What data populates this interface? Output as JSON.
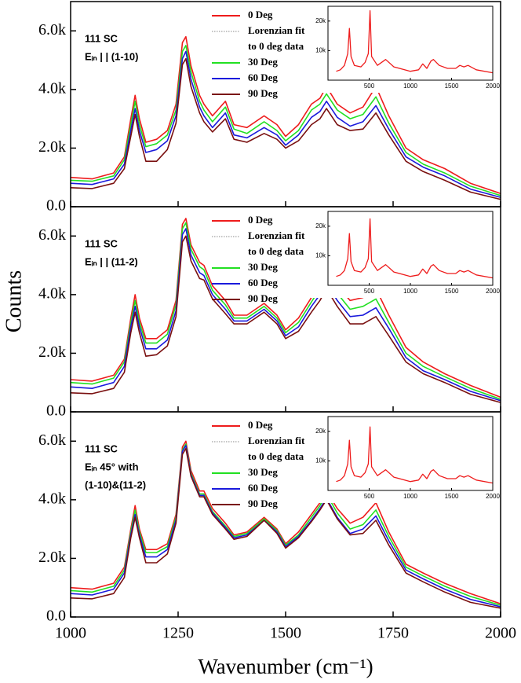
{
  "chart_data": [
    {
      "type": "line",
      "annotations": [
        "111 SC",
        "Eᵢₙ | | (1-10)"
      ],
      "x": [
        1000,
        1050,
        1100,
        1125,
        1140,
        1150,
        1160,
        1175,
        1200,
        1225,
        1245,
        1260,
        1268,
        1280,
        1300,
        1310,
        1330,
        1360,
        1380,
        1410,
        1450,
        1480,
        1500,
        1530,
        1560,
        1580,
        1595,
        1620,
        1650,
        1680,
        1710,
        1740,
        1780,
        1820,
        1870,
        1930,
        2000
      ],
      "xlim": [
        1000,
        2000
      ],
      "xticks": [
        1000,
        1250,
        1500,
        1750,
        2000
      ],
      "ylim": [
        0,
        7000
      ],
      "yticks": [
        {
          "value": 0,
          "label": "0.0"
        },
        {
          "value": 2000,
          "label": "2.0k"
        },
        {
          "value": 4000,
          "label": "4.0k"
        },
        {
          "value": 6000,
          "label": "6.0k"
        }
      ],
      "fit": {
        "name": "Lorenzian fit to 0 deg data",
        "color": "#8a8a8a"
      },
      "series": [
        {
          "name": "0 Deg",
          "color": "#ee1c1c",
          "values": [
            1000,
            950,
            1150,
            1700,
            3000,
            3800,
            3000,
            2200,
            2300,
            2600,
            3500,
            5600,
            5800,
            4800,
            3800,
            3500,
            3100,
            3600,
            2800,
            2700,
            3100,
            2800,
            2400,
            2800,
            3500,
            3700,
            4100,
            3500,
            3200,
            3400,
            4100,
            3100,
            2000,
            1600,
            1300,
            800,
            450
          ]
        },
        {
          "name": "30 Deg",
          "color": "#22e022",
          "values": [
            900,
            870,
            1050,
            1600,
            2800,
            3600,
            2800,
            2050,
            2150,
            2450,
            3300,
            5300,
            5500,
            4600,
            3600,
            3300,
            2900,
            3400,
            2650,
            2500,
            2900,
            2600,
            2250,
            2600,
            3300,
            3500,
            3850,
            3300,
            3000,
            3150,
            3750,
            2850,
            1850,
            1450,
            1150,
            700,
            380
          ]
        },
        {
          "name": "60 Deg",
          "color": "#1a1adc",
          "values": [
            800,
            760,
            950,
            1450,
            2600,
            3350,
            2600,
            1850,
            1950,
            2250,
            3100,
            5050,
            5300,
            4350,
            3400,
            3100,
            2700,
            3200,
            2450,
            2350,
            2700,
            2450,
            2100,
            2450,
            3050,
            3250,
            3600,
            3050,
            2750,
            2900,
            3450,
            2650,
            1700,
            1350,
            1050,
            600,
            320
          ]
        },
        {
          "name": "90 Deg",
          "color": "#7a1010",
          "values": [
            650,
            620,
            800,
            1300,
            2400,
            3150,
            2400,
            1550,
            1550,
            1950,
            2850,
            4850,
            5050,
            4100,
            3200,
            2900,
            2550,
            3000,
            2300,
            2200,
            2500,
            2300,
            2000,
            2250,
            2800,
            3000,
            3350,
            2800,
            2600,
            2650,
            3200,
            2450,
            1550,
            1200,
            900,
            500,
            250
          ]
        }
      ],
      "inset": {
        "type": "line",
        "x": [
          100,
          150,
          200,
          240,
          260,
          280,
          320,
          400,
          450,
          490,
          510,
          530,
          600,
          700,
          800,
          1000,
          1100,
          1150,
          1200,
          1250,
          1280,
          1350,
          1450,
          1550,
          1600,
          1650,
          1700,
          1800,
          2000
        ],
        "xlim": [
          0,
          2000
        ],
        "xticks": [
          500,
          1000,
          1500,
          2000
        ],
        "ylim": [
          0,
          25000
        ],
        "yticks": [
          {
            "value": 10000,
            "label": "10k"
          },
          {
            "value": 20000,
            "label": "20k"
          }
        ],
        "series": [
          {
            "color": "#ee1c1c",
            "values": [
              3000,
              3500,
              5000,
              9000,
              17500,
              8000,
              5000,
              4500,
              6000,
              9000,
              23500,
              8000,
              5000,
              7000,
              4500,
              3000,
              3500,
              5500,
              4000,
              6500,
              7000,
              5000,
              4000,
              4000,
              5000,
              4500,
              5000,
              3500,
              2500
            ]
          }
        ]
      }
    },
    {
      "type": "line",
      "annotations": [
        "111 SC",
        "Eᵢₙ | | (11-2)"
      ],
      "y_label": "Counts",
      "x": [
        1000,
        1050,
        1100,
        1125,
        1140,
        1150,
        1160,
        1175,
        1200,
        1225,
        1245,
        1260,
        1268,
        1280,
        1300,
        1310,
        1330,
        1360,
        1380,
        1410,
        1450,
        1480,
        1500,
        1530,
        1560,
        1580,
        1595,
        1620,
        1650,
        1680,
        1710,
        1740,
        1780,
        1820,
        1870,
        1930,
        2000
      ],
      "xlim": [
        1000,
        2000
      ],
      "xticks": [
        1000,
        1250,
        1500,
        1750,
        2000
      ],
      "ylim": [
        0,
        7000
      ],
      "yticks": [
        {
          "value": 0,
          "label": "0.0"
        },
        {
          "value": 2000,
          "label": "2.0k"
        },
        {
          "value": 4000,
          "label": "4.0k"
        },
        {
          "value": 6000,
          "label": "6.0k"
        }
      ],
      "fit": {
        "name": "Lorenzian fit to 0 deg data",
        "color": "#8a8a8a"
      },
      "series": [
        {
          "name": "0 Deg",
          "color": "#ee1c1c",
          "values": [
            1100,
            1050,
            1250,
            1800,
            3200,
            4000,
            3200,
            2500,
            2500,
            2800,
            3800,
            6400,
            6600,
            5700,
            5100,
            5000,
            4300,
            3800,
            3300,
            3300,
            3700,
            3300,
            2800,
            3200,
            3900,
            4400,
            4900,
            4300,
            3800,
            3900,
            4200,
            3300,
            2200,
            1700,
            1300,
            900,
            500
          ]
        },
        {
          "name": "30 Deg",
          "color": "#22e022",
          "values": [
            1000,
            950,
            1150,
            1700,
            3050,
            3800,
            3050,
            2350,
            2350,
            2650,
            3650,
            6250,
            6450,
            5550,
            4950,
            4850,
            4150,
            3650,
            3200,
            3200,
            3600,
            3200,
            2700,
            3050,
            3750,
            4200,
            4650,
            4050,
            3500,
            3600,
            3850,
            3050,
            2000,
            1550,
            1200,
            800,
            430
          ]
        },
        {
          "name": "60 Deg",
          "color": "#1a1adc",
          "values": [
            850,
            800,
            1000,
            1550,
            2900,
            3600,
            2900,
            2150,
            2150,
            2450,
            3450,
            6050,
            6250,
            5350,
            4750,
            4650,
            4000,
            3500,
            3100,
            3100,
            3500,
            3100,
            2600,
            2900,
            3600,
            4000,
            4400,
            3800,
            3250,
            3300,
            3550,
            2850,
            1850,
            1400,
            1100,
            700,
            380
          ]
        },
        {
          "name": "90 Deg",
          "color": "#7a1010",
          "values": [
            650,
            620,
            800,
            1350,
            2700,
            3400,
            2700,
            1900,
            1950,
            2250,
            3250,
            5800,
            6000,
            5150,
            4550,
            4500,
            3850,
            3350,
            3000,
            3000,
            3400,
            3000,
            2500,
            2750,
            3400,
            3800,
            4200,
            3600,
            3000,
            3000,
            3250,
            2600,
            1700,
            1300,
            1000,
            600,
            320
          ]
        }
      ],
      "inset": {
        "type": "line",
        "x": [
          100,
          150,
          200,
          240,
          260,
          280,
          320,
          400,
          450,
          490,
          510,
          530,
          600,
          700,
          800,
          1000,
          1100,
          1150,
          1200,
          1250,
          1280,
          1350,
          1450,
          1550,
          1600,
          1650,
          1700,
          1800,
          2000
        ],
        "xlim": [
          0,
          2000
        ],
        "xticks": [
          500,
          1000,
          1500,
          2000
        ],
        "ylim": [
          0,
          25000
        ],
        "yticks": [
          {
            "value": 10000,
            "label": "10k"
          },
          {
            "value": 20000,
            "label": "20k"
          }
        ],
        "series": [
          {
            "color": "#ee1c1c",
            "values": [
              3000,
              3500,
              5000,
              9000,
              17500,
              8000,
              5000,
              4500,
              6000,
              9000,
              22500,
              8000,
              5000,
              7000,
              4500,
              3000,
              3500,
              5500,
              4000,
              6500,
              7000,
              5000,
              4000,
              4000,
              5000,
              4500,
              5000,
              3500,
              2500
            ]
          }
        ]
      }
    },
    {
      "type": "line",
      "annotations": [
        "111 SC",
        "Eᵢₙ   45° with",
        "(1-10)&(11-2)"
      ],
      "x_label": "Wavenumber (cm⁻¹)",
      "x": [
        1000,
        1050,
        1100,
        1125,
        1140,
        1150,
        1160,
        1175,
        1200,
        1225,
        1245,
        1260,
        1268,
        1280,
        1300,
        1310,
        1330,
        1360,
        1380,
        1410,
        1450,
        1480,
        1500,
        1530,
        1560,
        1580,
        1595,
        1620,
        1650,
        1680,
        1710,
        1740,
        1780,
        1820,
        1870,
        1930,
        2000
      ],
      "xlim": [
        1000,
        2000
      ],
      "xticks": [
        1000,
        1250,
        1500,
        1750,
        2000
      ],
      "ylim": [
        0,
        7000
      ],
      "yticks": [
        {
          "value": 0,
          "label": "0.0"
        },
        {
          "value": 2000,
          "label": "2.0k"
        },
        {
          "value": 4000,
          "label": "4.0k"
        },
        {
          "value": 6000,
          "label": "6.0k"
        }
      ],
      "fit": {
        "name": "Lorenzian fit to 0 deg data",
        "color": "#8a8a8a"
      },
      "series": [
        {
          "name": "0 Deg",
          "color": "#ee1c1c",
          "values": [
            1000,
            950,
            1150,
            1700,
            3000,
            3800,
            3000,
            2300,
            2300,
            2500,
            3500,
            5800,
            6000,
            5000,
            4300,
            4300,
            3700,
            3200,
            2800,
            2900,
            3400,
            3000,
            2500,
            2900,
            3500,
            3900,
            4300,
            3700,
            3200,
            3400,
            3900,
            2900,
            1800,
            1500,
            1150,
            800,
            450
          ]
        },
        {
          "name": "30 Deg",
          "color": "#22e022",
          "values": [
            900,
            850,
            1050,
            1600,
            2900,
            3650,
            2900,
            2200,
            2200,
            2400,
            3400,
            5700,
            5900,
            4900,
            4200,
            4200,
            3600,
            3100,
            2750,
            2850,
            3350,
            2950,
            2450,
            2800,
            3400,
            3800,
            4200,
            3550,
            3000,
            3150,
            3650,
            2750,
            1700,
            1400,
            1050,
            700,
            400
          ]
        },
        {
          "name": "60 Deg",
          "color": "#1a1adc",
          "values": [
            800,
            750,
            950,
            1500,
            2800,
            3500,
            2800,
            2050,
            2050,
            2300,
            3300,
            5650,
            5850,
            4850,
            4150,
            4150,
            3550,
            3050,
            2700,
            2800,
            3300,
            2900,
            2400,
            2750,
            3300,
            3700,
            4050,
            3400,
            2850,
            3000,
            3450,
            2600,
            1600,
            1300,
            950,
            600,
            350
          ]
        },
        {
          "name": "90 Deg",
          "color": "#7a1010",
          "values": [
            650,
            620,
            800,
            1350,
            2700,
            3400,
            2700,
            1850,
            1850,
            2150,
            3200,
            5550,
            5750,
            4800,
            4100,
            4100,
            3500,
            3000,
            2650,
            2750,
            3300,
            2850,
            2350,
            2700,
            3250,
            3650,
            4000,
            3350,
            2800,
            2850,
            3300,
            2450,
            1500,
            1200,
            850,
            500,
            300
          ]
        }
      ],
      "inset": {
        "type": "line",
        "x": [
          100,
          150,
          200,
          240,
          260,
          280,
          320,
          400,
          450,
          490,
          510,
          530,
          600,
          700,
          800,
          1000,
          1100,
          1150,
          1200,
          1250,
          1280,
          1350,
          1450,
          1550,
          1600,
          1650,
          1700,
          1800,
          2000
        ],
        "xlim": [
          0,
          2000
        ],
        "xticks": [
          500,
          1000,
          1500,
          2000
        ],
        "ylim": [
          0,
          25000
        ],
        "yticks": [
          {
            "value": 10000,
            "label": "10k"
          },
          {
            "value": 20000,
            "label": "20k"
          }
        ],
        "series": [
          {
            "color": "#ee1c1c",
            "values": [
              3000,
              3500,
              5000,
              9000,
              17000,
              8000,
              5000,
              4500,
              6000,
              9000,
              21500,
              8000,
              5000,
              7000,
              4500,
              3000,
              3500,
              5500,
              4000,
              6500,
              7000,
              5000,
              4000,
              4000,
              5000,
              4500,
              5000,
              3500,
              2500
            ]
          }
        ]
      }
    }
  ]
}
